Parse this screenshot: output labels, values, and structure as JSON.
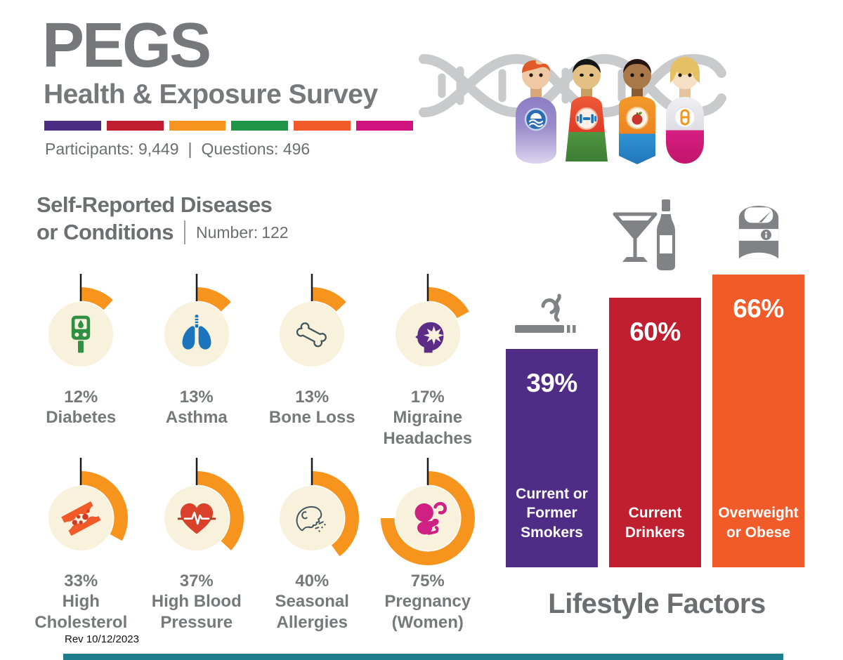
{
  "header": {
    "title": "PEGS",
    "subtitle": "Health &amp; Exposure Survey",
    "subtitle_plain": "Health & Exposure Survey",
    "participants": "Participants: 9,449",
    "separator": "|",
    "questions": "Questions: 496",
    "stripe_colors": [
      "#4B2E83",
      "#BE1E2D",
      "#F7941D",
      "#1F9647",
      "#F15A29",
      "#D0117E"
    ],
    "figure_badges": [
      "sleep-waves",
      "dumbbell",
      "apple",
      "pill"
    ]
  },
  "diseases": {
    "heading_line1": "Self-Reported Diseases",
    "heading_line2": "or Conditions",
    "number_label": "Number:",
    "number_value": "122",
    "arc_color": "#F7941E",
    "circle_color": "#F8F1DC",
    "items": [
      {
        "pct": 12,
        "pct_label": "12%",
        "name": "Diabetes",
        "icon": "glucose-meter"
      },
      {
        "pct": 13,
        "pct_label": "13%",
        "name": "Asthma",
        "icon": "lungs"
      },
      {
        "pct": 13,
        "pct_label": "13%",
        "name": "Bone Loss",
        "icon": "bone"
      },
      {
        "pct": 17,
        "pct_label": "17%",
        "name": "Migraine Headaches",
        "icon": "migraine-head"
      },
      {
        "pct": 33,
        "pct_label": "33%",
        "name": "High Cholesterol",
        "icon": "artery"
      },
      {
        "pct": 37,
        "pct_label": "37%",
        "name": "High Blood Pressure",
        "icon": "heart-pulse"
      },
      {
        "pct": 40,
        "pct_label": "40%",
        "name": "Seasonal Allergies",
        "icon": "sneeze"
      },
      {
        "pct": 75,
        "pct_label": "75%",
        "name": "Pregnancy (Women)",
        "icon": "fetus"
      }
    ]
  },
  "lifestyle": {
    "title": "Lifestyle Factors",
    "bars": [
      {
        "pct": 39,
        "pct_label": "39%",
        "label": "Current or Former Smokers",
        "color": "#4F2D87",
        "icon": "cigarette"
      },
      {
        "pct": 60,
        "pct_label": "60%",
        "label": "Current Drinkers",
        "color": "#C01F2F",
        "icon": "drinks"
      },
      {
        "pct": 66,
        "pct_label": "66%",
        "label": "Overweight or Obese",
        "color": "#F15A29",
        "icon": "scale"
      }
    ]
  },
  "footer": {
    "rev": "Rev 10/12/2023"
  },
  "chart_data": [
    {
      "type": "bar",
      "style": "radial-percent-icon-gauges",
      "title": "Self-Reported Diseases or Conditions",
      "subtitle": "Number: 122",
      "categories": [
        "Diabetes",
        "Asthma",
        "Bone Loss",
        "Migraine Headaches",
        "High Cholesterol",
        "High Blood Pressure",
        "Seasonal Allergies",
        "Pregnancy (Women)"
      ],
      "values": [
        12,
        13,
        13,
        17,
        33,
        37,
        40,
        75
      ],
      "unit": "%",
      "gauge_color": "#F7941E",
      "legend_position": "none"
    },
    {
      "type": "bar",
      "title": "Lifestyle Factors",
      "categories": [
        "Current or Former Smokers",
        "Current Drinkers",
        "Overweight or Obese"
      ],
      "values": [
        39,
        60,
        66
      ],
      "unit": "%",
      "ylim": [
        0,
        100
      ],
      "grid": false,
      "colors": [
        "#4F2D87",
        "#C01F2F",
        "#F15A29"
      ],
      "legend_position": "none"
    }
  ]
}
